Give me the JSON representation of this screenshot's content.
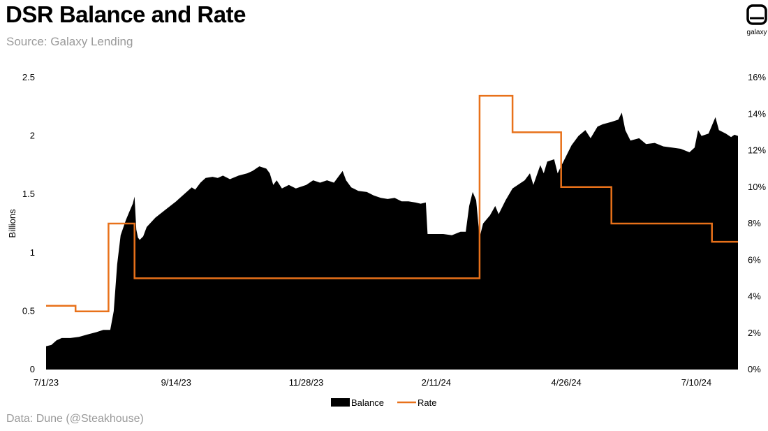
{
  "title": "DSR Balance and Rate",
  "subtitle": "Source: Galaxy Lending",
  "footer": "Data: Dune (@Steakhouse)",
  "logo": {
    "text": "galaxy",
    "icon": "galaxy-logo-icon"
  },
  "colors": {
    "balance": "#000000",
    "rate": "#E8711A"
  },
  "chart_data": {
    "type": "area",
    "title": "DSR Balance and Rate",
    "xlabel": "",
    "ylabel": "Billions",
    "y2label": "",
    "ylim": [
      0,
      2.5
    ],
    "y2lim": [
      0,
      16
    ],
    "yticks": [
      "0",
      "0.5",
      "1",
      "1.5",
      "2",
      "2.5"
    ],
    "y2ticks": [
      "0%",
      "2%",
      "4%",
      "6%",
      "8%",
      "10%",
      "12%",
      "14%",
      "16%"
    ],
    "xticks": [
      "7/1/23",
      "9/14/23",
      "11/28/23",
      "2/11/24",
      "4/26/24",
      "7/10/24"
    ],
    "xrange": [
      "2023-07-01",
      "2024-08-03"
    ],
    "legend": {
      "placement": "bottom-center"
    },
    "series": [
      {
        "name": "Balance",
        "kind": "area",
        "axis": "left",
        "points": [
          [
            "2023-07-01",
            0.2
          ],
          [
            "2023-07-04",
            0.21
          ],
          [
            "2023-07-07",
            0.25
          ],
          [
            "2023-07-10",
            0.27
          ],
          [
            "2023-07-15",
            0.27
          ],
          [
            "2023-07-20",
            0.28
          ],
          [
            "2023-07-25",
            0.3
          ],
          [
            "2023-07-30",
            0.32
          ],
          [
            "2023-08-03",
            0.34
          ],
          [
            "2023-08-07",
            0.34
          ],
          [
            "2023-08-09",
            0.5
          ],
          [
            "2023-08-11",
            0.9
          ],
          [
            "2023-08-13",
            1.15
          ],
          [
            "2023-08-16",
            1.28
          ],
          [
            "2023-08-18",
            1.35
          ],
          [
            "2023-08-20",
            1.42
          ],
          [
            "2023-08-21",
            1.48
          ],
          [
            "2023-08-22",
            1.2
          ],
          [
            "2023-08-23",
            1.13
          ],
          [
            "2023-08-24",
            1.11
          ],
          [
            "2023-08-26",
            1.14
          ],
          [
            "2023-08-28",
            1.22
          ],
          [
            "2023-09-02",
            1.3
          ],
          [
            "2023-09-08",
            1.37
          ],
          [
            "2023-09-14",
            1.44
          ],
          [
            "2023-09-20",
            1.52
          ],
          [
            "2023-09-23",
            1.56
          ],
          [
            "2023-09-25",
            1.54
          ],
          [
            "2023-09-28",
            1.6
          ],
          [
            "2023-10-01",
            1.64
          ],
          [
            "2023-10-05",
            1.65
          ],
          [
            "2023-10-08",
            1.64
          ],
          [
            "2023-10-11",
            1.66
          ],
          [
            "2023-10-15",
            1.63
          ],
          [
            "2023-10-20",
            1.66
          ],
          [
            "2023-10-25",
            1.68
          ],
          [
            "2023-10-28",
            1.7
          ],
          [
            "2023-11-01",
            1.74
          ],
          [
            "2023-11-05",
            1.72
          ],
          [
            "2023-11-07",
            1.68
          ],
          [
            "2023-11-09",
            1.58
          ],
          [
            "2023-11-11",
            1.62
          ],
          [
            "2023-11-14",
            1.55
          ],
          [
            "2023-11-18",
            1.58
          ],
          [
            "2023-11-22",
            1.55
          ],
          [
            "2023-11-28",
            1.58
          ],
          [
            "2023-12-02",
            1.62
          ],
          [
            "2023-12-06",
            1.6
          ],
          [
            "2023-12-10",
            1.62
          ],
          [
            "2023-12-14",
            1.6
          ],
          [
            "2023-12-16",
            1.64
          ],
          [
            "2023-12-19",
            1.7
          ],
          [
            "2023-12-21",
            1.62
          ],
          [
            "2023-12-24",
            1.56
          ],
          [
            "2023-12-28",
            1.53
          ],
          [
            "2024-01-02",
            1.52
          ],
          [
            "2024-01-06",
            1.49
          ],
          [
            "2024-01-10",
            1.47
          ],
          [
            "2024-01-14",
            1.46
          ],
          [
            "2024-01-18",
            1.47
          ],
          [
            "2024-01-22",
            1.44
          ],
          [
            "2024-01-26",
            1.44
          ],
          [
            "2024-01-30",
            1.43
          ],
          [
            "2024-02-02",
            1.42
          ],
          [
            "2024-02-05",
            1.43
          ],
          [
            "2024-02-06",
            1.16
          ],
          [
            "2024-02-10",
            1.16
          ],
          [
            "2024-02-15",
            1.16
          ],
          [
            "2024-02-20",
            1.15
          ],
          [
            "2024-02-25",
            1.18
          ],
          [
            "2024-02-28",
            1.18
          ],
          [
            "2024-03-01",
            1.4
          ],
          [
            "2024-03-03",
            1.52
          ],
          [
            "2024-03-05",
            1.45
          ],
          [
            "2024-03-07",
            1.13
          ],
          [
            "2024-03-09",
            1.25
          ],
          [
            "2024-03-13",
            1.32
          ],
          [
            "2024-03-16",
            1.4
          ],
          [
            "2024-03-18",
            1.33
          ],
          [
            "2024-03-22",
            1.45
          ],
          [
            "2024-03-26",
            1.55
          ],
          [
            "2024-03-29",
            1.58
          ],
          [
            "2024-04-02",
            1.62
          ],
          [
            "2024-04-05",
            1.68
          ],
          [
            "2024-04-07",
            1.58
          ],
          [
            "2024-04-11",
            1.75
          ],
          [
            "2024-04-13",
            1.68
          ],
          [
            "2024-04-15",
            1.78
          ],
          [
            "2024-04-19",
            1.8
          ],
          [
            "2024-04-21",
            1.68
          ],
          [
            "2024-04-25",
            1.8
          ],
          [
            "2024-04-29",
            1.92
          ],
          [
            "2024-05-03",
            2.0
          ],
          [
            "2024-05-07",
            2.05
          ],
          [
            "2024-05-10",
            1.98
          ],
          [
            "2024-05-14",
            2.08
          ],
          [
            "2024-05-17",
            2.1
          ],
          [
            "2024-05-22",
            2.12
          ],
          [
            "2024-05-26",
            2.14
          ],
          [
            "2024-05-28",
            2.2
          ],
          [
            "2024-05-30",
            2.05
          ],
          [
            "2024-06-02",
            1.96
          ],
          [
            "2024-06-07",
            1.98
          ],
          [
            "2024-06-11",
            1.93
          ],
          [
            "2024-06-16",
            1.94
          ],
          [
            "2024-06-21",
            1.91
          ],
          [
            "2024-06-26",
            1.9
          ],
          [
            "2024-07-01",
            1.89
          ],
          [
            "2024-07-06",
            1.86
          ],
          [
            "2024-07-09",
            1.9
          ],
          [
            "2024-07-11",
            2.05
          ],
          [
            "2024-07-13",
            2.0
          ],
          [
            "2024-07-17",
            2.02
          ],
          [
            "2024-07-21",
            2.16
          ],
          [
            "2024-07-23",
            2.05
          ],
          [
            "2024-07-27",
            2.02
          ],
          [
            "2024-07-30",
            1.99
          ],
          [
            "2024-08-01",
            2.01
          ],
          [
            "2024-08-03",
            2.0
          ]
        ]
      },
      {
        "name": "Rate",
        "kind": "step-line",
        "axis": "right",
        "points": [
          [
            "2023-07-01",
            3.49
          ],
          [
            "2023-07-18",
            3.49
          ],
          [
            "2023-07-18",
            3.19
          ],
          [
            "2023-08-06",
            3.19
          ],
          [
            "2023-08-06",
            8.0
          ],
          [
            "2023-08-21",
            8.0
          ],
          [
            "2023-08-21",
            5.0
          ],
          [
            "2024-03-07",
            5.0
          ],
          [
            "2024-03-07",
            15.0
          ],
          [
            "2024-03-26",
            15.0
          ],
          [
            "2024-03-26",
            13.0
          ],
          [
            "2024-04-23",
            13.0
          ],
          [
            "2024-04-23",
            10.0
          ],
          [
            "2024-05-22",
            10.0
          ],
          [
            "2024-05-22",
            8.0
          ],
          [
            "2024-07-19",
            8.0
          ],
          [
            "2024-07-19",
            7.0
          ],
          [
            "2024-08-03",
            7.0
          ]
        ]
      }
    ]
  }
}
